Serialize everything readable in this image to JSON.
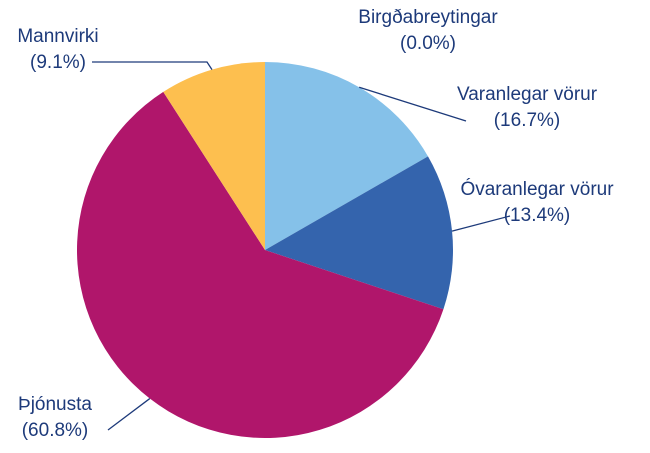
{
  "chart_data": {
    "type": "pie",
    "categories": [
      "Birgðabreytingar",
      "Varanlegar vörur",
      "Óvaranlegar vörur",
      "Þjónusta",
      "Mannvirki"
    ],
    "values": [
      0.0,
      16.7,
      13.4,
      60.8,
      9.1
    ],
    "value_labels": [
      "(0.0%)",
      "(16.7%)",
      "(13.4%)",
      "(60.8%)",
      "(9.1%)"
    ],
    "colors": [
      "#7f7f7f",
      "#85c1e9",
      "#3464ad",
      "#b0166b",
      "#fdbf4f"
    ]
  }
}
